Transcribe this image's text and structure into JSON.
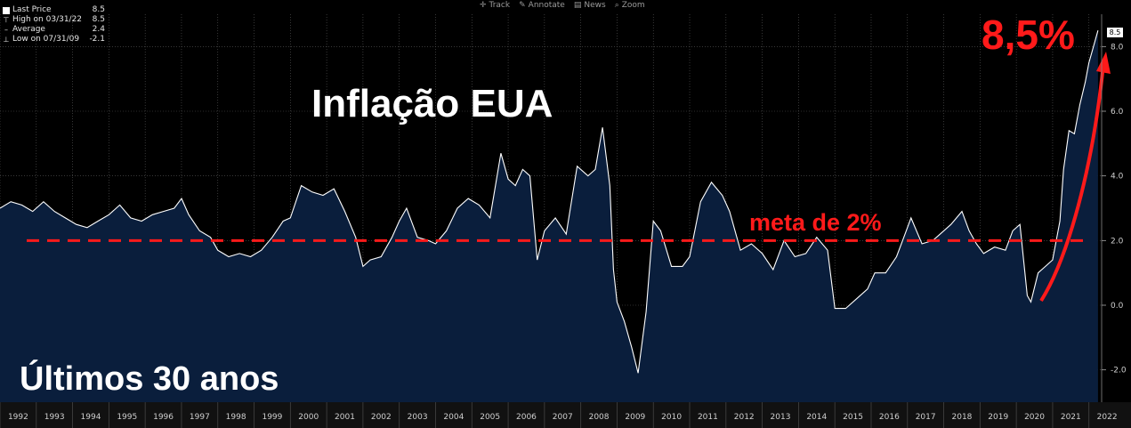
{
  "legend": {
    "items": [
      {
        "label": "Last Price",
        "value": "8.5"
      },
      {
        "label": "High on 03/31/22",
        "value": "8.5"
      },
      {
        "label": "Average",
        "value": "2.4"
      },
      {
        "label": "Low on 07/31/09",
        "value": "-2.1"
      }
    ]
  },
  "toolbar": {
    "track": "Track",
    "annotate": "Annotate",
    "news": "News",
    "zoom": "Zoom"
  },
  "annotations": {
    "title": "Inflação EUA",
    "subtitle": "Últimos 30 anos",
    "last_value_callout": "8,5%",
    "target_label": "meta de 2%",
    "last_price_badge": "8.5"
  },
  "colors": {
    "background": "#000000",
    "area_fill": "#0a1e3c",
    "line": "#ffffff",
    "annotation": "#ff1a1a",
    "grid": "#5a5a5a"
  },
  "chart_data": {
    "type": "area",
    "title": "Inflação EUA",
    "subtitle": "Últimos 30 anos",
    "xlabel": "",
    "ylabel": "",
    "x_ticks": [
      "1992",
      "1993",
      "1994",
      "1995",
      "1996",
      "1997",
      "1998",
      "1999",
      "2000",
      "2001",
      "2002",
      "2003",
      "2004",
      "2005",
      "2006",
      "2007",
      "2008",
      "2009",
      "2010",
      "2011",
      "2012",
      "2013",
      "2014",
      "2015",
      "2016",
      "2017",
      "2018",
      "2019",
      "2020",
      "2021",
      "2022"
    ],
    "y_ticks": [
      "-2.0",
      "0.0",
      "2.0",
      "4.0",
      "6.0",
      "8.0"
    ],
    "ylim": [
      -3.0,
      9.0
    ],
    "xlim": [
      1992.0,
      2022.35
    ],
    "grid": true,
    "target_line": {
      "label": "meta de 2%",
      "value": 2.0,
      "style": "dashed"
    },
    "series": [
      {
        "values": [
          [
            1992.0,
            3.0
          ],
          [
            1992.3,
            3.2
          ],
          [
            1992.6,
            3.1
          ],
          [
            1992.9,
            2.9
          ],
          [
            1993.2,
            3.2
          ],
          [
            1993.5,
            2.9
          ],
          [
            1993.8,
            2.7
          ],
          [
            1994.1,
            2.5
          ],
          [
            1994.4,
            2.4
          ],
          [
            1994.7,
            2.6
          ],
          [
            1995.0,
            2.8
          ],
          [
            1995.3,
            3.1
          ],
          [
            1995.6,
            2.7
          ],
          [
            1995.9,
            2.6
          ],
          [
            1996.2,
            2.8
          ],
          [
            1996.5,
            2.9
          ],
          [
            1996.8,
            3.0
          ],
          [
            1997.0,
            3.3
          ],
          [
            1997.2,
            2.8
          ],
          [
            1997.5,
            2.3
          ],
          [
            1997.8,
            2.1
          ],
          [
            1998.0,
            1.7
          ],
          [
            1998.3,
            1.5
          ],
          [
            1998.6,
            1.6
          ],
          [
            1998.9,
            1.5
          ],
          [
            1999.2,
            1.7
          ],
          [
            1999.5,
            2.1
          ],
          [
            1999.8,
            2.6
          ],
          [
            2000.0,
            2.7
          ],
          [
            2000.3,
            3.7
          ],
          [
            2000.6,
            3.5
          ],
          [
            2000.9,
            3.4
          ],
          [
            2001.2,
            3.6
          ],
          [
            2001.5,
            2.9
          ],
          [
            2001.8,
            2.1
          ],
          [
            2002.0,
            1.2
          ],
          [
            2002.2,
            1.4
          ],
          [
            2002.5,
            1.5
          ],
          [
            2002.8,
            2.1
          ],
          [
            2003.0,
            2.6
          ],
          [
            2003.2,
            3.0
          ],
          [
            2003.5,
            2.1
          ],
          [
            2003.8,
            2.0
          ],
          [
            2004.0,
            1.9
          ],
          [
            2004.3,
            2.3
          ],
          [
            2004.6,
            3.0
          ],
          [
            2004.9,
            3.3
          ],
          [
            2005.2,
            3.1
          ],
          [
            2005.5,
            2.7
          ],
          [
            2005.8,
            4.7
          ],
          [
            2006.0,
            3.9
          ],
          [
            2006.2,
            3.7
          ],
          [
            2006.4,
            4.2
          ],
          [
            2006.6,
            4.0
          ],
          [
            2006.8,
            1.4
          ],
          [
            2007.0,
            2.3
          ],
          [
            2007.3,
            2.7
          ],
          [
            2007.6,
            2.2
          ],
          [
            2007.9,
            4.3
          ],
          [
            2008.2,
            4.0
          ],
          [
            2008.4,
            4.2
          ],
          [
            2008.6,
            5.5
          ],
          [
            2008.8,
            3.7
          ],
          [
            2008.9,
            1.1
          ],
          [
            2009.0,
            0.1
          ],
          [
            2009.2,
            -0.5
          ],
          [
            2009.4,
            -1.3
          ],
          [
            2009.58,
            -2.1
          ],
          [
            2009.8,
            -0.2
          ],
          [
            2010.0,
            2.6
          ],
          [
            2010.2,
            2.3
          ],
          [
            2010.5,
            1.2
          ],
          [
            2010.8,
            1.2
          ],
          [
            2011.0,
            1.5
          ],
          [
            2011.3,
            3.2
          ],
          [
            2011.6,
            3.8
          ],
          [
            2011.9,
            3.4
          ],
          [
            2012.1,
            2.9
          ],
          [
            2012.4,
            1.7
          ],
          [
            2012.7,
            1.9
          ],
          [
            2013.0,
            1.6
          ],
          [
            2013.3,
            1.1
          ],
          [
            2013.6,
            2.0
          ],
          [
            2013.9,
            1.5
          ],
          [
            2014.2,
            1.6
          ],
          [
            2014.5,
            2.1
          ],
          [
            2014.8,
            1.7
          ],
          [
            2015.0,
            -0.1
          ],
          [
            2015.3,
            -0.1
          ],
          [
            2015.6,
            0.2
          ],
          [
            2015.9,
            0.5
          ],
          [
            2016.1,
            1.0
          ],
          [
            2016.4,
            1.0
          ],
          [
            2016.7,
            1.5
          ],
          [
            2016.9,
            2.1
          ],
          [
            2017.1,
            2.7
          ],
          [
            2017.4,
            1.9
          ],
          [
            2017.7,
            2.0
          ],
          [
            2017.9,
            2.2
          ],
          [
            2018.2,
            2.5
          ],
          [
            2018.5,
            2.9
          ],
          [
            2018.7,
            2.3
          ],
          [
            2018.9,
            1.9
          ],
          [
            2019.1,
            1.6
          ],
          [
            2019.4,
            1.8
          ],
          [
            2019.7,
            1.7
          ],
          [
            2019.9,
            2.3
          ],
          [
            2020.1,
            2.5
          ],
          [
            2020.3,
            0.3
          ],
          [
            2020.4,
            0.1
          ],
          [
            2020.6,
            1.0
          ],
          [
            2020.8,
            1.2
          ],
          [
            2021.0,
            1.4
          ],
          [
            2021.2,
            2.6
          ],
          [
            2021.3,
            4.2
          ],
          [
            2021.45,
            5.4
          ],
          [
            2021.6,
            5.3
          ],
          [
            2021.75,
            6.2
          ],
          [
            2021.9,
            6.9
          ],
          [
            2022.0,
            7.5
          ],
          [
            2022.1,
            7.9
          ],
          [
            2022.25,
            8.5
          ]
        ]
      }
    ]
  }
}
